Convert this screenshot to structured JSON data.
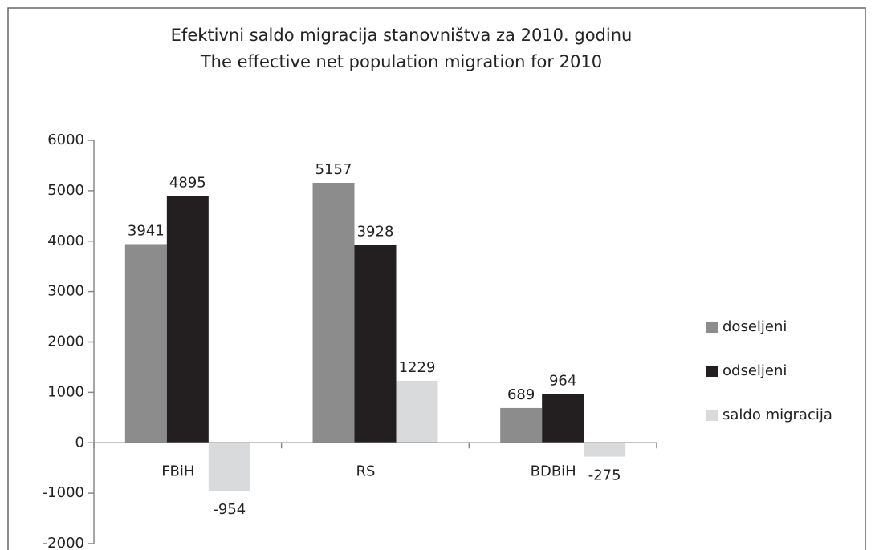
{
  "chart_data": {
    "type": "bar",
    "title": [
      "Efektivni saldo migracija stanovništva za 2010. godinu",
      "The effective net population migration for 2010"
    ],
    "categories": [
      "FBiH",
      "RS",
      "BDBiH"
    ],
    "series": [
      {
        "name": "doseljeni",
        "color": "#8c8c8c",
        "values": [
          3941,
          5157,
          689
        ]
      },
      {
        "name": "odseljeni",
        "color": "#231f20",
        "values": [
          4895,
          3928,
          964
        ]
      },
      {
        "name": "saldo migracija",
        "color": "#d9dadb",
        "values": [
          -954,
          1229,
          -275
        ]
      }
    ],
    "ylim": [
      -2000,
      6000
    ],
    "yticks": [
      -2000,
      -1000,
      0,
      1000,
      2000,
      3000,
      4000,
      5000,
      6000
    ],
    "legend": "right"
  }
}
